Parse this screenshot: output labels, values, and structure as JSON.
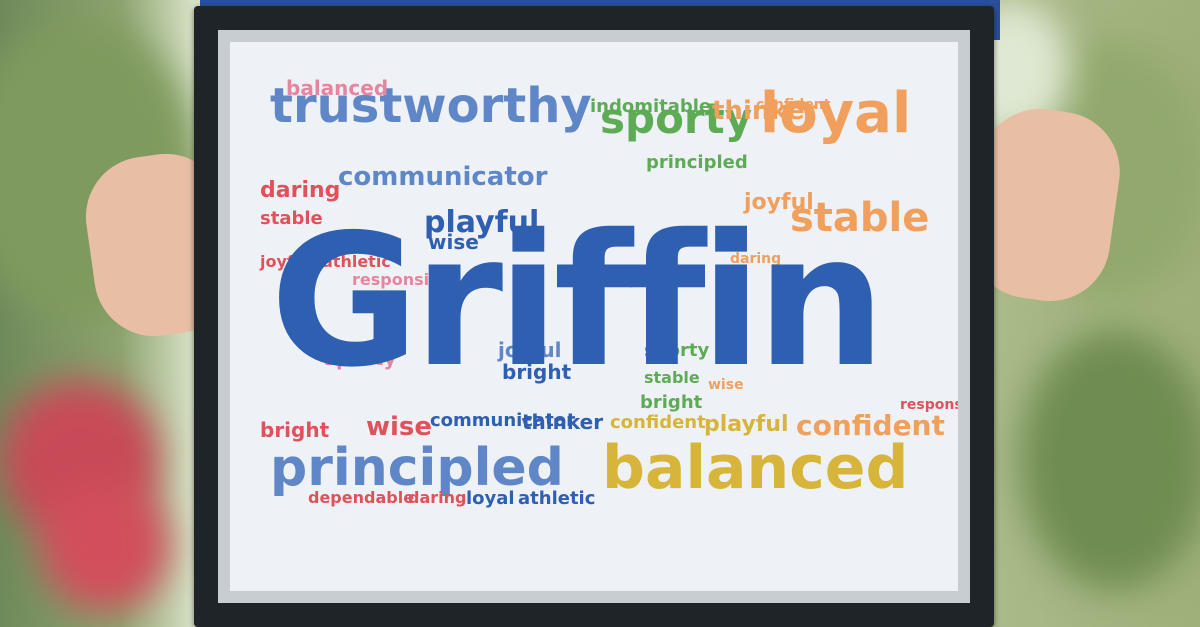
{
  "artwork": {
    "title": "Griffin",
    "words": [
      "trustworthy",
      "sporty",
      "loyal",
      "communicator",
      "playful",
      "stable",
      "athletic",
      "responsible",
      "principled",
      "balanced",
      "confident",
      "daring",
      "wise",
      "joyful",
      "bright",
      "thinker",
      "indomitable",
      "dependable",
      "Griffin"
    ]
  },
  "palette": {
    "blue": "#2f5fb0",
    "lightblue": "#5f86c7",
    "red": "#e0525b",
    "pink": "#e784a0",
    "orange": "#f0a05c",
    "green": "#5eab55",
    "yellow": "#d7b53a",
    "frame": "#1f2429",
    "mat": "#eef1f6"
  }
}
